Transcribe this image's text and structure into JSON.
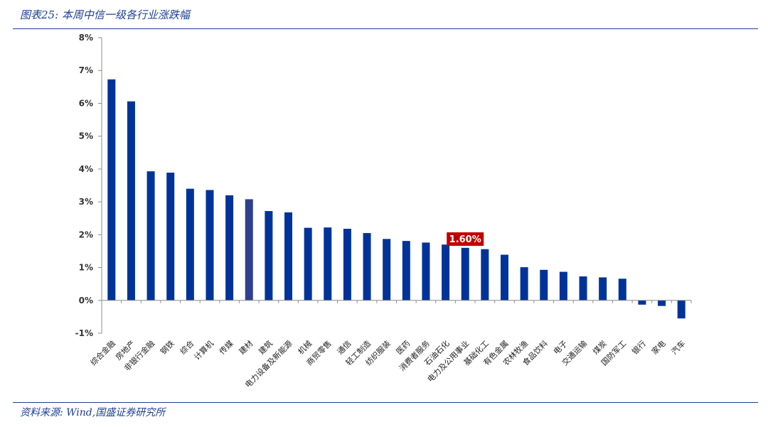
{
  "header": {
    "title": "图表25:  本周中信一级各行业涨跌幅"
  },
  "footer": {
    "source": "资料来源:  Wind,国盛证券研究所"
  },
  "colors": {
    "bar": "#003399",
    "highlight_bar": "#2e3f8f",
    "axis": "#8c8c8c",
    "callout": "#c00000",
    "rule": "#1c3f94"
  },
  "chart_data": {
    "type": "bar",
    "categories": [
      "综合金融",
      "房地产",
      "非银行金融",
      "钢铁",
      "综合",
      "计算机",
      "传媒",
      "建材",
      "建筑",
      "电力设备及新能源",
      "机械",
      "商贸零售",
      "通信",
      "轻工制造",
      "纺织服装",
      "医药",
      "消费者服务",
      "石油石化",
      "电力及公用事业",
      "基础化工",
      "有色金属",
      "农林牧渔",
      "食品饮料",
      "电子",
      "交通运输",
      "煤炭",
      "国防军工",
      "银行",
      "家电",
      "汽车"
    ],
    "values": [
      6.73,
      6.06,
      3.93,
      3.89,
      3.4,
      3.36,
      3.2,
      3.08,
      2.72,
      2.68,
      2.21,
      2.22,
      2.18,
      2.05,
      1.87,
      1.81,
      1.76,
      1.7,
      1.6,
      1.56,
      1.39,
      1.01,
      0.93,
      0.87,
      0.73,
      0.7,
      0.66,
      -0.13,
      -0.17,
      -0.55
    ],
    "highlight_index": 7,
    "y_ticks": [
      "-1%",
      "0%",
      "1%",
      "2%",
      "3%",
      "4%",
      "5%",
      "6%",
      "7%",
      "8%"
    ],
    "ylim": [
      -1,
      8
    ],
    "grid": false,
    "annotation": {
      "text": "1.60%",
      "category_index": 18
    }
  }
}
